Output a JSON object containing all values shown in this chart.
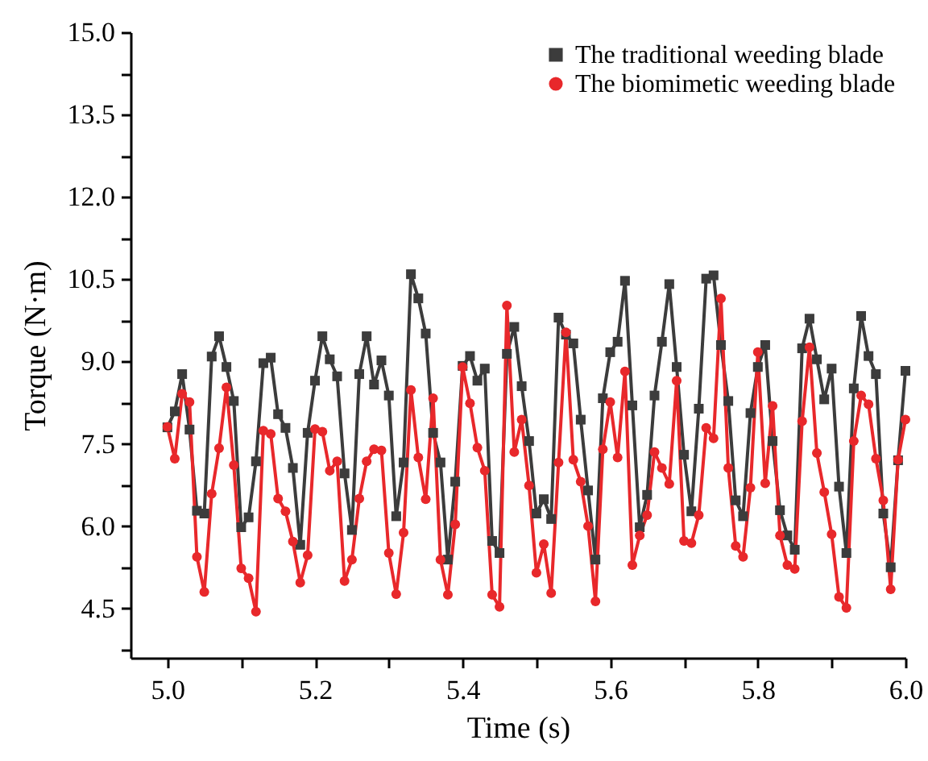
{
  "chart_data": {
    "type": "line",
    "xlabel": "Time (s)",
    "ylabel": "Torque (N·m)",
    "x": [
      5.0,
      5.01,
      5.02,
      5.03,
      5.04,
      5.05,
      5.06,
      5.07,
      5.08,
      5.09,
      5.1,
      5.11,
      5.12,
      5.13,
      5.14,
      5.15,
      5.16,
      5.17,
      5.18,
      5.19,
      5.2,
      5.21,
      5.22,
      5.23,
      5.24,
      5.25,
      5.26,
      5.27,
      5.28,
      5.29,
      5.3,
      5.31,
      5.32,
      5.33,
      5.34,
      5.35,
      5.36,
      5.37,
      5.38,
      5.39,
      5.4,
      5.41,
      5.42,
      5.43,
      5.44,
      5.45,
      5.46,
      5.47,
      5.48,
      5.49,
      5.5,
      5.51,
      5.52,
      5.53,
      5.54,
      5.55,
      5.56,
      5.57,
      5.58,
      5.59,
      5.6,
      5.61,
      5.62,
      5.63,
      5.64,
      5.65,
      5.66,
      5.67,
      5.68,
      5.69,
      5.7,
      5.71,
      5.72,
      5.73,
      5.74,
      5.75,
      5.76,
      5.77,
      5.78,
      5.79,
      5.8,
      5.81,
      5.82,
      5.83,
      5.84,
      5.85,
      5.86,
      5.87,
      5.88,
      5.89,
      5.9,
      5.91,
      5.92,
      5.93,
      5.94,
      5.95,
      5.96,
      5.97,
      5.98,
      5.99,
      6.0
    ],
    "series": [
      {
        "name": "The traditional weeding blade",
        "color": "#3c3c3c",
        "marker": "square",
        "values": [
          7.8,
          8.09,
          8.77,
          7.76,
          6.28,
          6.23,
          9.09,
          9.46,
          8.9,
          8.28,
          5.98,
          6.16,
          7.18,
          8.97,
          9.07,
          8.04,
          7.79,
          7.06,
          5.66,
          7.7,
          8.65,
          9.46,
          9.04,
          8.73,
          6.96,
          5.93,
          8.77,
          9.46,
          8.58,
          9.02,
          8.38,
          6.18,
          7.16,
          10.59,
          10.15,
          9.51,
          7.7,
          7.16,
          5.39,
          6.81,
          8.92,
          9.1,
          8.65,
          8.87,
          5.73,
          5.51,
          9.14,
          9.63,
          8.55,
          7.55,
          6.23,
          6.49,
          6.13,
          9.8,
          9.49,
          9.33,
          7.94,
          6.65,
          5.39,
          8.33,
          9.17,
          9.36,
          10.47,
          8.2,
          5.98,
          6.57,
          8.38,
          9.36,
          10.41,
          8.9,
          7.3,
          6.27,
          8.14,
          10.51,
          10.57,
          9.3,
          8.28,
          6.47,
          6.18,
          8.06,
          8.9,
          9.3,
          7.55,
          6.29,
          5.83,
          5.57,
          9.24,
          9.78,
          9.04,
          8.31,
          8.87,
          6.72,
          5.51,
          8.51,
          9.83,
          9.1,
          8.77,
          6.23,
          5.25,
          7.2,
          8.83
        ]
      },
      {
        "name": "The biomimetic weeding blade",
        "color": "#e8282b",
        "marker": "circle",
        "values": [
          7.81,
          7.23,
          8.41,
          8.26,
          5.44,
          4.8,
          6.59,
          7.42,
          8.53,
          7.11,
          5.23,
          5.05,
          4.44,
          7.74,
          7.68,
          6.5,
          6.27,
          5.72,
          4.97,
          5.47,
          7.77,
          7.72,
          7.01,
          7.18,
          5.0,
          5.39,
          6.5,
          7.18,
          7.4,
          7.38,
          5.51,
          4.76,
          5.88,
          8.48,
          7.25,
          6.49,
          8.33,
          5.39,
          4.75,
          6.03,
          8.9,
          8.24,
          7.43,
          7.01,
          4.75,
          4.53,
          10.02,
          7.35,
          7.94,
          6.74,
          5.15,
          5.67,
          4.78,
          7.16,
          9.53,
          7.21,
          6.81,
          6.0,
          4.63,
          7.4,
          8.26,
          7.25,
          8.82,
          5.29,
          5.83,
          6.2,
          7.35,
          7.06,
          6.77,
          8.65,
          5.73,
          5.69,
          6.2,
          7.79,
          7.6,
          10.15,
          7.06,
          5.64,
          5.44,
          6.7,
          9.17,
          6.78,
          8.19,
          5.83,
          5.29,
          5.22,
          7.91,
          9.26,
          7.33,
          6.62,
          5.85,
          4.71,
          4.51,
          7.55,
          8.38,
          8.22,
          7.23,
          6.47,
          4.85,
          7.21,
          7.94
        ]
      }
    ],
    "xlim": [
      4.95,
      6.0
    ],
    "xticks": [
      {
        "value": 5.0,
        "label": "5.0"
      },
      {
        "value": 5.1,
        "label": null
      },
      {
        "value": 5.2,
        "label": "5.2"
      },
      {
        "value": 5.3,
        "label": null
      },
      {
        "value": 5.4,
        "label": "5.4"
      },
      {
        "value": 5.5,
        "label": null
      },
      {
        "value": 5.6,
        "label": "5.6"
      },
      {
        "value": 5.7,
        "label": null
      },
      {
        "value": 5.8,
        "label": "5.8"
      },
      {
        "value": 5.9,
        "label": null
      },
      {
        "value": 6.0,
        "label": "6.0"
      }
    ],
    "ylim": [
      3.6,
      15.0
    ],
    "yticks": [
      {
        "value": 3.75,
        "label": null
      },
      {
        "value": 4.5,
        "label": "4.5"
      },
      {
        "value": 5.25,
        "label": null
      },
      {
        "value": 6.0,
        "label": "6.0"
      },
      {
        "value": 6.75,
        "label": null
      },
      7.5,
      {
        "value": 8.25,
        "label": null
      },
      {
        "value": 9.0,
        "label": "9.0"
      },
      {
        "value": 9.75,
        "label": null
      },
      10.5,
      {
        "value": 11.25,
        "label": null
      },
      {
        "value": 12.0,
        "label": "12.0"
      },
      {
        "value": 12.75,
        "label": null
      },
      13.5,
      {
        "value": 14.25,
        "label": null
      },
      {
        "value": 15.0,
        "label": "15.0"
      }
    ],
    "legend": "top right",
    "line_style": "solid"
  }
}
